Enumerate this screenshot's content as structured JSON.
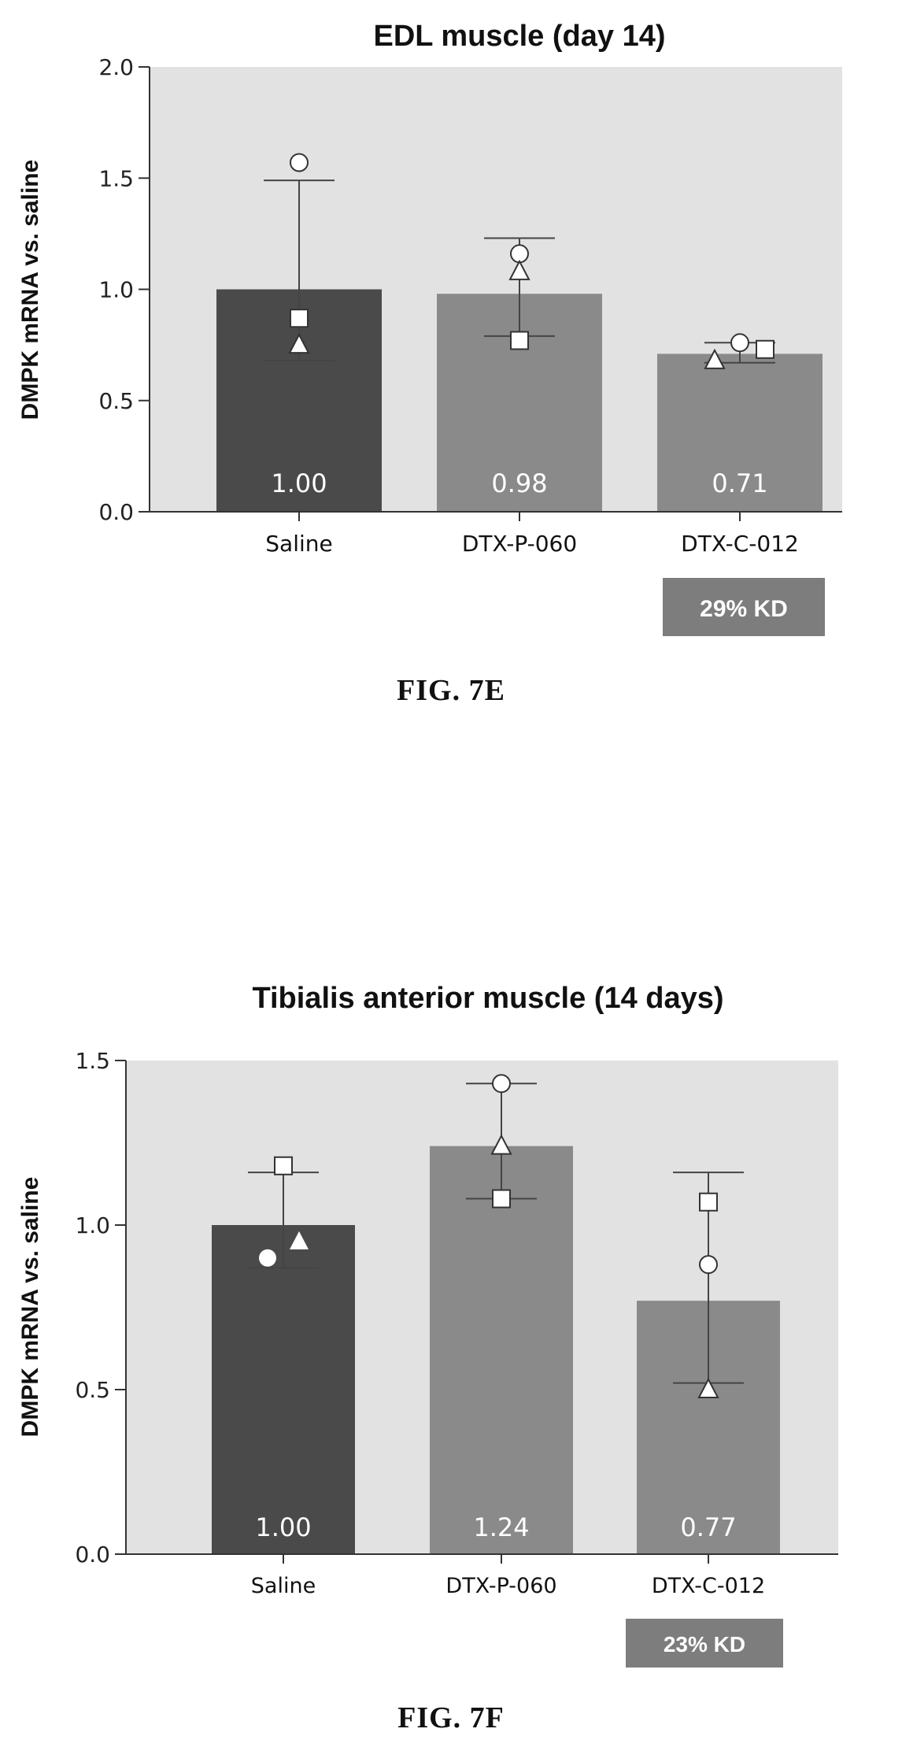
{
  "figures": [
    {
      "caption": "FIG. 7E",
      "chart_data": {
        "type": "bar",
        "title": "EDL muscle (day 14)",
        "ylabel": "DMPK mRNA vs. saline",
        "xlabel": "",
        "ylim": [
          0,
          2.0
        ],
        "yticks": [
          "0.0",
          "0.5",
          "1.0",
          "1.5",
          "2.0"
        ],
        "categories": [
          "Saline",
          "DTX-P-060",
          "DTX-C-012"
        ],
        "values": [
          1.0,
          0.98,
          0.71
        ],
        "value_labels": [
          "1.00",
          "0.98",
          "0.71"
        ],
        "error": [
          [
            0.68,
            1.49
          ],
          [
            0.79,
            1.23
          ],
          [
            0.67,
            0.76
          ]
        ],
        "points": [
          [
            {
              "shape": "circle",
              "y": 1.57
            },
            {
              "shape": "square",
              "y": 0.87
            },
            {
              "shape": "triangle",
              "y": 0.75
            }
          ],
          [
            {
              "shape": "circle",
              "y": 1.16
            },
            {
              "shape": "triangle",
              "y": 1.08
            },
            {
              "shape": "square",
              "y": 0.77
            }
          ],
          [
            {
              "shape": "triangle",
              "y": 0.68
            },
            {
              "shape": "circle",
              "y": 0.76
            },
            {
              "shape": "square",
              "y": 0.73
            }
          ]
        ],
        "bar_colors": [
          "#4a4a4a",
          "#8a8a8a",
          "#8a8a8a"
        ],
        "badge": {
          "category_index": 2,
          "text": "29% KD"
        },
        "grid": false
      }
    },
    {
      "caption": "FIG. 7F",
      "chart_data": {
        "type": "bar",
        "title": "Tibialis anterior muscle (14 days)",
        "ylabel": "DMPK mRNA vs. saline",
        "xlabel": "",
        "ylim": [
          0,
          1.5
        ],
        "yticks": [
          "0.0",
          "0.5",
          "1.0",
          "1.5"
        ],
        "categories": [
          "Saline",
          "DTX-P-060",
          "DTX-C-012"
        ],
        "values": [
          1.0,
          1.24,
          0.77
        ],
        "value_labels": [
          "1.00",
          "1.24",
          "0.77"
        ],
        "error": [
          [
            0.87,
            1.16
          ],
          [
            1.08,
            1.43
          ],
          [
            0.52,
            1.16
          ]
        ],
        "points": [
          [
            {
              "shape": "square",
              "y": 1.18
            },
            {
              "shape": "circle-filled",
              "y": 0.9
            },
            {
              "shape": "triangle-filled",
              "y": 0.95
            }
          ],
          [
            {
              "shape": "circle",
              "y": 1.43
            },
            {
              "shape": "triangle",
              "y": 1.24
            },
            {
              "shape": "square",
              "y": 1.08
            }
          ],
          [
            {
              "shape": "square",
              "y": 1.07
            },
            {
              "shape": "circle",
              "y": 0.88
            },
            {
              "shape": "triangle",
              "y": 0.5
            }
          ]
        ],
        "bar_colors": [
          "#4a4a4a",
          "#8a8a8a",
          "#8a8a8a"
        ],
        "badge": {
          "category_index": 2,
          "text": "23% KD"
        },
        "grid": false
      }
    }
  ],
  "colors": {
    "plot_background": "#e2e2e2",
    "badge": "#7d7d7d",
    "axis": "#333333"
  }
}
